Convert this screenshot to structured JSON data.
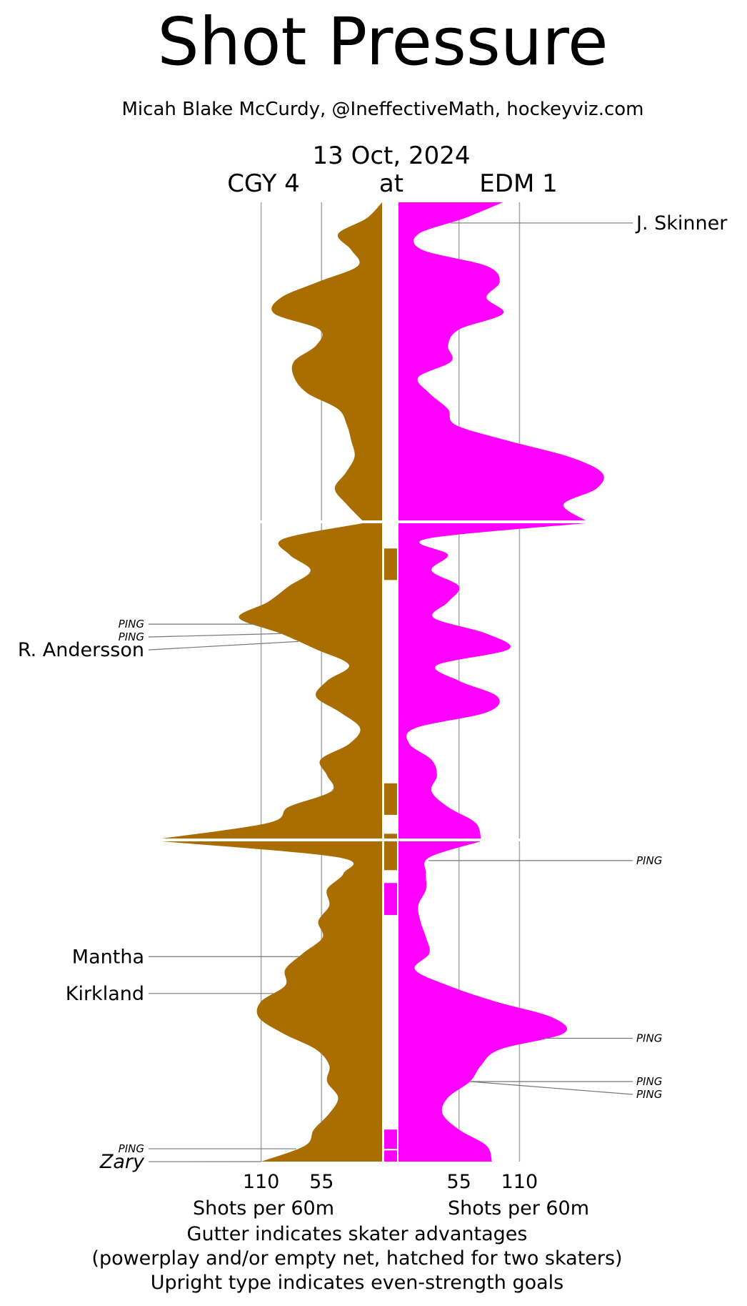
{
  "header": {
    "title": "Shot Pressure",
    "subtitle": "Micah Blake McCurdy, @IneffectiveMath, hockeyviz.com",
    "date": "13 Oct, 2024",
    "away_label": "CGY 4",
    "at_label": "at",
    "home_label": "EDM 1"
  },
  "colors": {
    "away": "#aa6e00",
    "home": "#ff00ff",
    "gridline": "#aaaaaa",
    "leader": "#777777"
  },
  "axis": {
    "left_ticks": [
      "110",
      "55"
    ],
    "right_ticks": [
      "55",
      "110"
    ],
    "left_label": "Shots per 60m",
    "right_label": "Shots per 60m"
  },
  "footer": {
    "line1": "Gutter indicates skater advantages",
    "line2": "(powerplay and/or empty net, hatched for two skaters)",
    "line3": "Upright type indicates even-strength goals"
  },
  "chart_data": {
    "type": "area",
    "title": "Shot Pressure",
    "xlabel": "Shots per 60m",
    "orientation": "vertical mirrored",
    "y_unit": "game minute",
    "periods": 3,
    "period_length": 20,
    "x_gridlines": [
      55,
      110
    ],
    "series": [
      {
        "name": "CGY",
        "side": "left",
        "minute": [
          0,
          1,
          2,
          3,
          4,
          5,
          6,
          7,
          8,
          9,
          10,
          11,
          12,
          13,
          14,
          15,
          16,
          17,
          18,
          19,
          20,
          21,
          22,
          23,
          24,
          25,
          26,
          27,
          28,
          29,
          30,
          31,
          32,
          33,
          34,
          35,
          36,
          37,
          38,
          39,
          40,
          41,
          42,
          43,
          44,
          45,
          46,
          47,
          48,
          49,
          50,
          51,
          52,
          53,
          54,
          55,
          56,
          57,
          58,
          59,
          60
        ],
        "shots_per_60": [
          0,
          14,
          40,
          28,
          22,
          58,
          92,
          98,
          57,
          60,
          80,
          80,
          68,
          40,
          32,
          28,
          25,
          33,
          43,
          32,
          18,
          90,
          84,
          65,
          85,
          104,
          130,
          92,
          60,
          30,
          50,
          60,
          38,
          20,
          30,
          56,
          50,
          46,
          85,
          103,
          200,
          40,
          35,
          50,
          48,
          58,
          54,
          72,
          88,
          88,
          110,
          112,
          90,
          60,
          48,
          50,
          40,
          48,
          62,
          70,
          110
        ]
      },
      {
        "name": "EDM",
        "side": "right",
        "minute": [
          0,
          1,
          2,
          3,
          4,
          5,
          6,
          7,
          8,
          9,
          10,
          11,
          12,
          13,
          14,
          15,
          16,
          17,
          18,
          19,
          20,
          21,
          22,
          23,
          24,
          25,
          26,
          27,
          28,
          29,
          30,
          31,
          32,
          33,
          34,
          35,
          36,
          37,
          38,
          39,
          40,
          41,
          42,
          43,
          44,
          45,
          46,
          47,
          48,
          49,
          50,
          51,
          52,
          53,
          54,
          55,
          56,
          57,
          58,
          59,
          60
        ],
        "shots_per_60": [
          95,
          60,
          18,
          22,
          80,
          92,
          80,
          95,
          55,
          45,
          48,
          18,
          28,
          45,
          52,
          100,
          155,
          185,
          180,
          150,
          170,
          25,
          45,
          30,
          55,
          45,
          32,
          80,
          100,
          35,
          55,
          90,
          80,
          15,
          10,
          30,
          35,
          30,
          45,
          70,
          75,
          28,
          25,
          25,
          18,
          20,
          25,
          28,
          15,
          45,
          88,
          140,
          150,
          92,
          75,
          65,
          45,
          40,
          55,
          80,
          85
        ]
      }
    ],
    "gutter_advantages": [
      {
        "team": "CGY",
        "start_min": 21.6,
        "end_min": 23.6
      },
      {
        "team": "CGY",
        "start_min": 36.5,
        "end_min": 38.5
      },
      {
        "team": "CGY",
        "start_min": 39.7,
        "end_min": 41.8
      },
      {
        "team": "EDM",
        "start_min": 42.6,
        "end_min": 44.6
      },
      {
        "team": "EDM",
        "start_min": 58.0,
        "end_min": 59.2
      },
      {
        "team": "EDM",
        "start_min": 59.3,
        "end_min": 60.0
      }
    ],
    "annotations": [
      {
        "side": "right",
        "text": "J. Skinner",
        "style": "upright",
        "minute": 1.3
      },
      {
        "side": "left",
        "text": "PING",
        "style": "italic",
        "minute": 26.4
      },
      {
        "side": "left",
        "text": "PING",
        "style": "italic",
        "minute": 27.0
      },
      {
        "side": "left",
        "text": "R. Andersson",
        "style": "upright",
        "minute": 27.5
      },
      {
        "side": "right",
        "text": "PING",
        "style": "italic",
        "minute": 41.2
      },
      {
        "side": "left",
        "text": "Mantha",
        "style": "upright",
        "minute": 47.2
      },
      {
        "side": "left",
        "text": "Kirkland",
        "style": "upright",
        "minute": 49.5
      },
      {
        "side": "right",
        "text": "PING",
        "style": "italic",
        "minute": 52.3
      },
      {
        "side": "right",
        "text": "PING",
        "style": "italic",
        "minute": 55.0
      },
      {
        "side": "right",
        "text": "PING",
        "style": "italic",
        "minute": 55.0
      },
      {
        "side": "left",
        "text": "PING",
        "style": "italic",
        "minute": 59.2
      },
      {
        "side": "left",
        "text": "Zary",
        "style": "italic",
        "minute": 60.0
      }
    ]
  }
}
